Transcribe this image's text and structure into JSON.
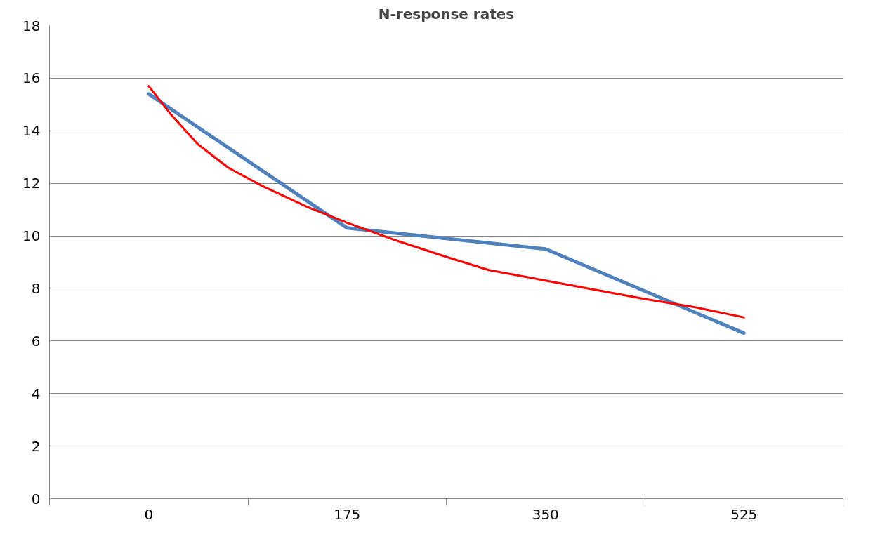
{
  "chart_data": {
    "type": "line",
    "title": "N-response rates",
    "x": [
      0,
      175,
      350,
      525
    ],
    "xlim": [
      -87.5,
      612.5
    ],
    "xticks": [
      {
        "value": -87.5,
        "label": null
      },
      0,
      {
        "value": 87.5,
        "label": null
      },
      175,
      {
        "value": 262.5,
        "label": null
      },
      350,
      {
        "value": 437.5,
        "label": null
      },
      525,
      {
        "value": 612.5,
        "label": null
      }
    ],
    "ylim": [
      0,
      18
    ],
    "yticks": [
      0,
      2,
      4,
      6,
      8,
      10,
      12,
      14,
      16,
      18
    ],
    "grid": "y",
    "series": [
      {
        "color": "#4f81bd",
        "values": [
          15.4,
          10.3,
          9.5,
          6.3
        ]
      },
      {
        "type": "line",
        "color": "#ff0000",
        "x": [
          0,
          20,
          43,
          70,
          100,
          140,
          175,
          220,
          262.5,
          300,
          350,
          400,
          437.5,
          480,
          525
        ],
        "values": [
          15.7,
          14.6,
          13.5,
          12.6,
          11.9,
          11.1,
          10.5,
          9.8,
          9.2,
          8.7,
          8.3,
          7.9,
          7.6,
          7.3,
          6.9
        ]
      }
    ]
  }
}
